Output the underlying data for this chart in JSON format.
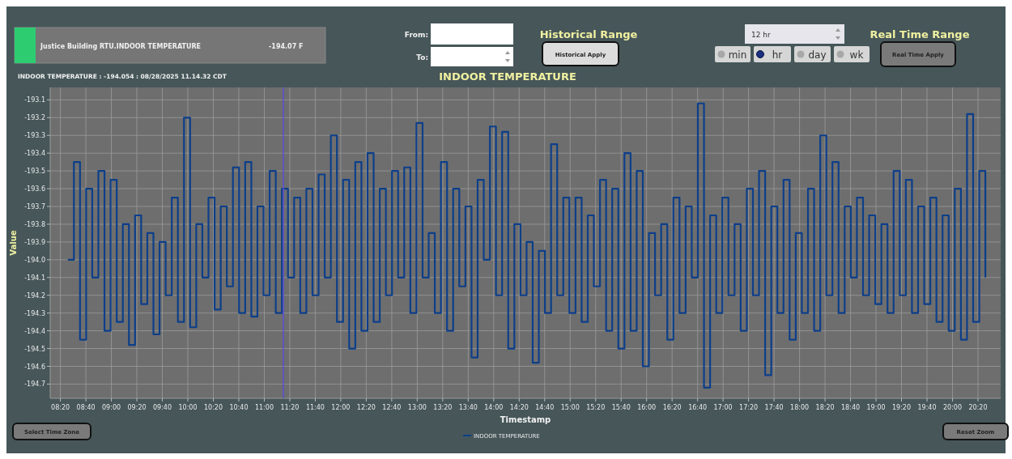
{
  "chart_data": {
    "type": "step",
    "title": "INDOOR TEMPERATURE",
    "xlabel": "Timestamp",
    "ylabel": "Value",
    "x": [
      8.43,
      8.51,
      8.59,
      8.67,
      8.75,
      8.83,
      8.91,
      8.99,
      9.07,
      9.15,
      9.23,
      9.31,
      9.39,
      9.47,
      9.55,
      9.63,
      9.71,
      9.79,
      9.87,
      9.95,
      10.03,
      10.11,
      10.19,
      10.27,
      10.35,
      10.43,
      10.51,
      10.59,
      10.67,
      10.75,
      10.83,
      10.91,
      10.99,
      11.07,
      11.15,
      11.23,
      11.31,
      11.39,
      11.47,
      11.55,
      11.63,
      11.71,
      11.79,
      11.87,
      11.95,
      12.03,
      12.11,
      12.19,
      12.27,
      12.35,
      12.43,
      12.51,
      12.59,
      12.67,
      12.75,
      12.83,
      12.91,
      12.99,
      13.07,
      13.15,
      13.23,
      13.31,
      13.39,
      13.47,
      13.55,
      13.63,
      13.71,
      13.79,
      13.87,
      13.95,
      14.03,
      14.11,
      14.19,
      14.27,
      14.35,
      14.43,
      14.51,
      14.59,
      14.67,
      14.75,
      14.83,
      14.91,
      14.99,
      15.07,
      15.15,
      15.23,
      15.31,
      15.39,
      15.47,
      15.55,
      15.63,
      15.71,
      15.79,
      15.87,
      15.95,
      16.03,
      16.11,
      16.19,
      16.27,
      16.35,
      16.43,
      16.51,
      16.59,
      16.67,
      16.75,
      16.83,
      16.91,
      16.99,
      17.07,
      17.15,
      17.23,
      17.31,
      17.39,
      17.47,
      17.55,
      17.63,
      17.71,
      17.79,
      17.87,
      17.95,
      18.03,
      18.11,
      18.19,
      18.27,
      18.35,
      18.43,
      18.51,
      18.59,
      18.67,
      18.75,
      18.83,
      18.91,
      18.99,
      19.07,
      19.15,
      19.23,
      19.31,
      19.39,
      19.47,
      19.55,
      19.63,
      19.71,
      19.79,
      19.87,
      19.95,
      20.03,
      20.11,
      20.19,
      20.27,
      20.35,
      20.43
    ],
    "series": [
      {
        "name": "INDOOR TEMPERATURE",
        "color": "#0d3f8a",
        "values": [
          -194.0,
          -193.45,
          -194.45,
          -193.6,
          -194.1,
          -193.5,
          -194.4,
          -193.55,
          -194.35,
          -193.8,
          -194.48,
          -193.75,
          -194.25,
          -193.85,
          -194.42,
          -193.9,
          -194.2,
          -193.65,
          -194.35,
          -193.2,
          -194.38,
          -193.8,
          -194.1,
          -193.65,
          -194.28,
          -193.7,
          -194.15,
          -193.48,
          -194.3,
          -193.45,
          -194.32,
          -193.7,
          -194.2,
          -193.5,
          -194.3,
          -193.6,
          -194.1,
          -193.65,
          -194.3,
          -193.6,
          -194.2,
          -193.52,
          -194.1,
          -193.3,
          -194.35,
          -193.55,
          -194.5,
          -193.45,
          -194.4,
          -193.4,
          -194.35,
          -193.6,
          -194.2,
          -193.5,
          -194.1,
          -193.48,
          -194.3,
          -193.23,
          -194.1,
          -193.85,
          -194.3,
          -193.45,
          -194.4,
          -193.6,
          -194.15,
          -193.7,
          -194.55,
          -193.55,
          -194.0,
          -193.25,
          -194.2,
          -193.28,
          -194.5,
          -193.8,
          -194.2,
          -193.9,
          -194.58,
          -193.95,
          -194.3,
          -193.35,
          -194.2,
          -193.65,
          -194.3,
          -193.65,
          -194.35,
          -193.75,
          -194.15,
          -193.55,
          -194.4,
          -193.6,
          -194.5,
          -193.4,
          -194.4,
          -193.5,
          -194.6,
          -193.85,
          -194.2,
          -193.8,
          -194.45,
          -193.65,
          -194.3,
          -193.7,
          -194.1,
          -193.12,
          -194.72,
          -193.75,
          -194.3,
          -193.65,
          -194.2,
          -193.8,
          -194.4,
          -193.6,
          -194.2,
          -193.5,
          -194.65,
          -193.7,
          -194.3,
          -193.55,
          -194.45,
          -193.85,
          -194.3,
          -193.6,
          -194.4,
          -193.3,
          -194.2,
          -193.45,
          -194.3,
          -193.7,
          -194.1,
          -193.65,
          -194.2,
          -193.75,
          -194.25,
          -193.8,
          -194.3,
          -193.5,
          -194.2,
          -193.55,
          -194.3,
          -193.7,
          -194.25,
          -193.65,
          -194.35,
          -193.75,
          -194.4,
          -193.6,
          -194.45,
          -193.18,
          -194.35,
          -193.5,
          -194.1
        ]
      }
    ],
    "xlim": [
      8.2,
      20.63
    ],
    "xticks": [
      {
        "value": 8.3333,
        "label": "08:20"
      },
      {
        "value": 8.6667,
        "label": "08:40"
      },
      {
        "value": 9,
        "label": "09:00"
      },
      {
        "value": 9.3333,
        "label": "09:20"
      },
      {
        "value": 9.6667,
        "label": "09:40"
      },
      {
        "value": 10,
        "label": "10:00"
      },
      {
        "value": 10.3333,
        "label": "10:20"
      },
      {
        "value": 10.6667,
        "label": "10:40"
      },
      {
        "value": 11,
        "label": "11:00"
      },
      {
        "value": 11.3333,
        "label": "11:20"
      },
      {
        "value": 11.6667,
        "label": "11:40"
      },
      {
        "value": 12,
        "label": "12:00"
      },
      {
        "value": 12.3333,
        "label": "12:20"
      },
      {
        "value": 12.6667,
        "label": "12:40"
      },
      {
        "value": 13,
        "label": "13:00"
      },
      {
        "value": 13.3333,
        "label": "13:20"
      },
      {
        "value": 13.6667,
        "label": "13:40"
      },
      {
        "value": 14,
        "label": "14:00"
      },
      {
        "value": 14.3333,
        "label": "14:20"
      },
      {
        "value": 14.6667,
        "label": "14:40"
      },
      {
        "value": 15,
        "label": "15:00"
      },
      {
        "value": 15.3333,
        "label": "15:20"
      },
      {
        "value": 15.6667,
        "label": "15:40"
      },
      {
        "value": 16,
        "label": "16:00"
      },
      {
        "value": 16.3333,
        "label": "16:20"
      },
      {
        "value": 16.6667,
        "label": "16:40"
      },
      {
        "value": 17,
        "label": "17:00"
      },
      {
        "value": 17.3333,
        "label": "17:20"
      },
      {
        "value": 17.6667,
        "label": "17:40"
      },
      {
        "value": 18,
        "label": "18:00"
      },
      {
        "value": 18.3333,
        "label": "18:20"
      },
      {
        "value": 18.6667,
        "label": "18:40"
      },
      {
        "value": 19,
        "label": "19:00"
      },
      {
        "value": 19.3333,
        "label": "19:20"
      },
      {
        "value": 19.6667,
        "label": "19:40"
      },
      {
        "value": 20,
        "label": "20:00"
      },
      {
        "value": 20.3333,
        "label": "20:20"
      }
    ],
    "ylim": [
      -194.78,
      -193.03
    ],
    "yticks": [
      -194.7,
      -194.6,
      -194.5,
      -194.4,
      -194.3,
      -194.2,
      -194.1,
      {
        "value": -194.0,
        "label": "-194.0"
      },
      -193.9,
      -193.8,
      -193.7,
      -193.6,
      -193.5,
      -193.4,
      -193.3,
      -193.2,
      -193.1
    ],
    "ref_lines": [
      {
        "axis": "x",
        "value": 11.25,
        "color": "#5a4fd6"
      }
    ],
    "grid": true,
    "legend": "bottom",
    "annotations": [
      "Justice Building RTU.INDOOR TEMPERATURE",
      "-194.07 F",
      "INDOOR TEMPERATURE : -194.054 : 08/28/2025 11.14.32 CDT",
      "From:",
      "To:",
      "Historical Range",
      "Historical Apply",
      "12 hr",
      "min",
      "hr",
      "day",
      "wk",
      "Real Time Range",
      "Real Time Apply",
      "Select Time Zone",
      "Reset Zoom"
    ]
  }
}
